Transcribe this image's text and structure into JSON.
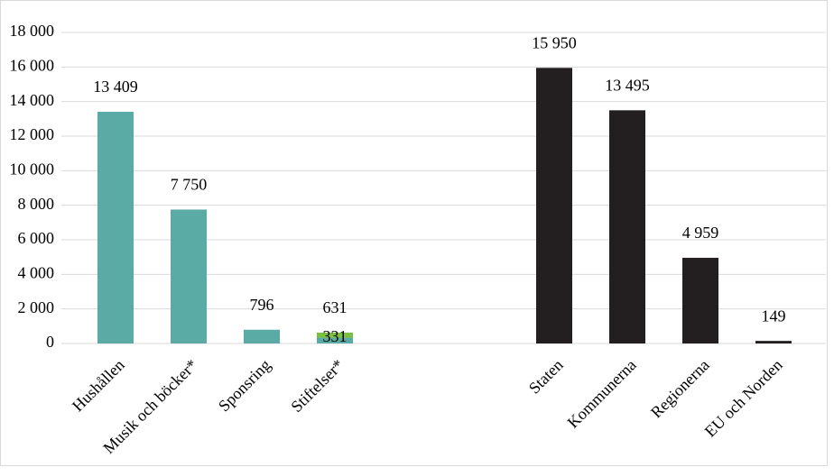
{
  "chart_data": {
    "type": "bar",
    "categories": [
      "Hushållen",
      "Musik och böcker*",
      "Sponsring",
      "Stiftelser*",
      null,
      null,
      "Staten",
      "Kommunerna",
      "Regionerna",
      "EU och Norden"
    ],
    "series": [
      {
        "color": "#7ac143",
        "values": [
          null,
          null,
          null,
          631,
          null,
          null,
          null,
          null,
          null,
          null
        ],
        "value_labels": [
          null,
          null,
          null,
          "631",
          null,
          null,
          null,
          null,
          null,
          null
        ]
      },
      {
        "color": "#5aaba5",
        "values": [
          13409,
          7750,
          796,
          331,
          null,
          null,
          null,
          null,
          null,
          null
        ],
        "value_labels": [
          "13 409",
          "7 750",
          "796",
          "331",
          null,
          null,
          null,
          null,
          null,
          null
        ]
      },
      {
        "color": "#231f20",
        "values": [
          null,
          null,
          null,
          null,
          null,
          null,
          15950,
          13495,
          4959,
          149
        ],
        "value_labels": [
          null,
          null,
          null,
          null,
          null,
          null,
          "15 950",
          "13 495",
          "4 959",
          "149"
        ]
      }
    ],
    "ylim": [
      0,
      18000
    ],
    "yticks": [
      0,
      {
        "value": 2000,
        "label": "2 000"
      },
      {
        "value": 4000,
        "label": "4 000"
      },
      {
        "value": 6000,
        "label": "6 000"
      },
      {
        "value": 8000,
        "label": "8 000"
      },
      {
        "value": 10000,
        "label": "10 000"
      },
      {
        "value": 12000,
        "label": "12 000"
      },
      {
        "value": 14000,
        "label": "14 000"
      },
      {
        "value": 16000,
        "label": "16 000"
      },
      {
        "value": 18000,
        "label": "18 000"
      }
    ],
    "grid": true
  }
}
